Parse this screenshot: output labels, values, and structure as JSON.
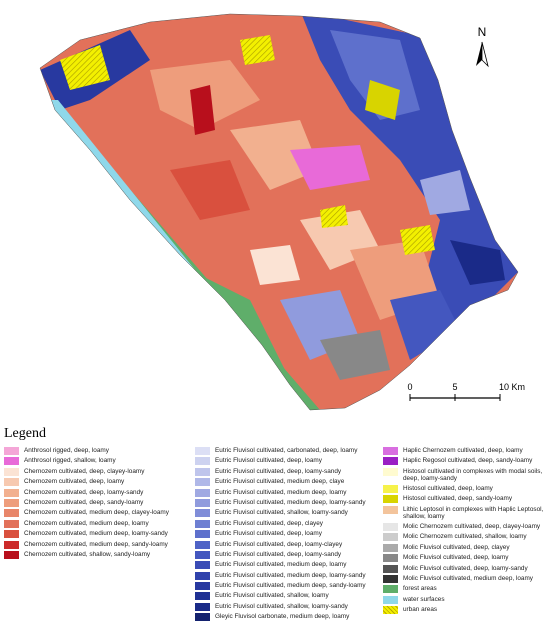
{
  "north_arrow": {
    "label": "N"
  },
  "scale_bar": {
    "labels": [
      "0",
      "5",
      "10 Km"
    ]
  },
  "legend": {
    "title": "Legend",
    "columns": [
      {
        "items": [
          {
            "label": "Anthrosol rigged, deep, loamy",
            "color": "#f4a6d7"
          },
          {
            "label": "Anthrosol rigged, shallow, loamy",
            "color": "#e86ad8"
          },
          {
            "label": "Chernozem cultivated, deep, clayey-loamy",
            "color": "#fbe3d4"
          },
          {
            "label": "Chernozem cultivated, deep, loamy",
            "color": "#f7c9b0"
          },
          {
            "label": "Chernozem cultivated, deep, loamy-sandy",
            "color": "#f2b08f"
          },
          {
            "label": "Chernozem cultivated, deep, sandy-loamy",
            "color": "#ee9d7c"
          },
          {
            "label": "Chernozem cultivated, medium deep, clayey-loamy",
            "color": "#e8866a"
          },
          {
            "label": "Chernozem cultivated, medium deep, loamy",
            "color": "#e2715a"
          },
          {
            "label": "Chernozem cultivated, medium deep, loamy-sandy",
            "color": "#d9503e"
          },
          {
            "label": "Chernozem cultivated, medium deep, sandy-loamy",
            "color": "#cc2a2a"
          },
          {
            "label": "Chernozem cultivated, shallow, sandy-loamy",
            "color": "#b80f1c"
          }
        ]
      },
      {
        "items": [
          {
            "label": "Eutric Fluvisol cultivated, carbonated, deep, loamy",
            "color": "#dcdff5"
          },
          {
            "label": "Eutric Fluvisol cultivated, deep, loamy",
            "color": "#cdd2f0"
          },
          {
            "label": "Eutric Fluvisol cultivated, deep, loamy-sandy",
            "color": "#bfc5ec"
          },
          {
            "label": "Eutric Fluvisol cultivated, medium deep, claye",
            "color": "#b0b8e8"
          },
          {
            "label": "Eutric Fluvisol cultivated, medium deep, loamy",
            "color": "#a0a9e2"
          },
          {
            "label": "Eutric Fluvisol cultivated, medium deep, loamy-sandy",
            "color": "#909bdd"
          },
          {
            "label": "Eutric Fluvisol cultivated, shallow, loamy-sandy",
            "color": "#808dd8"
          },
          {
            "label": "Eutric Fluvisol cultivated, deep, clayey",
            "color": "#6e7fd2"
          },
          {
            "label": "Eutric Fluvisol cultivated, deep, loamy",
            "color": "#5e70cc"
          },
          {
            "label": "Eutric Fluvisol cultivated, deep, loamy-clayey",
            "color": "#4f63c6"
          },
          {
            "label": "Eutric Fluvisol cultivated, deep, loamy-sandy",
            "color": "#4457bf"
          },
          {
            "label": "Eutric Fluvisol cultivated, medium deep, loamy",
            "color": "#3a4cb6"
          },
          {
            "label": "Eutric Fluvisol cultivated, medium deep, loamy-sandy",
            "color": "#3042ac"
          },
          {
            "label": "Eutric Fluvisol cultivated, medium deep, sandy-loamy",
            "color": "#2839a0"
          },
          {
            "label": "Eutric Fluvisol cultivated, shallow, loamy",
            "color": "#203194"
          },
          {
            "label": "Eutric Fluvisol cultivated, shallow, loamy-sandy",
            "color": "#1a2a88"
          },
          {
            "label": "Gleyic Fluvisol carbonate, medium deep, loamy",
            "color": "#14226f"
          }
        ]
      },
      {
        "items": [
          {
            "label": "Haplic Chernozem cultivated, deep, loamy",
            "color": "#d86ee0"
          },
          {
            "label": "Haplic Regosol cultivated, deep, sandy-loamy",
            "color": "#9a1fc4"
          },
          {
            "label": "Histosol cultivated in complexes with modal soils, deep, loamy-sandy",
            "color": "#fffbd0"
          },
          {
            "label": "Histosol cultivated, deep, loamy",
            "color": "#f6f24a"
          },
          {
            "label": "Histosol cultivated, deep, sandy-loamy",
            "color": "#d8d400"
          },
          {
            "label": "Lithic Leptosol in complexes with Haplic Leptosol, shallow, loamy",
            "color": "#f3c49c"
          },
          {
            "label": "Molic Chernozem cultivated, deep, clayey-loamy",
            "color": "#e6e6e6"
          },
          {
            "label": "Molic Chernozem cultivated, shallow, loamy",
            "color": "#cccccc"
          },
          {
            "label": "Molic Fluvisol cultivated, deep, clayey",
            "color": "#aaaaaa"
          },
          {
            "label": "Molic Fluvisol cultivated, deep, loamy",
            "color": "#888888"
          },
          {
            "label": "Molic Fluvisol cultivated, deep, loamy-sandy",
            "color": "#555555"
          },
          {
            "label": "Molic Fluvisol cultivated, medium deep, loamy",
            "color": "#333333"
          },
          {
            "label": "forest areas",
            "color": "#5fae6a"
          },
          {
            "label": "water surfaces",
            "color": "#8fd8ea"
          },
          {
            "label": "urban areas",
            "color": "#f3f000",
            "pattern": "hatch"
          }
        ]
      }
    ]
  }
}
